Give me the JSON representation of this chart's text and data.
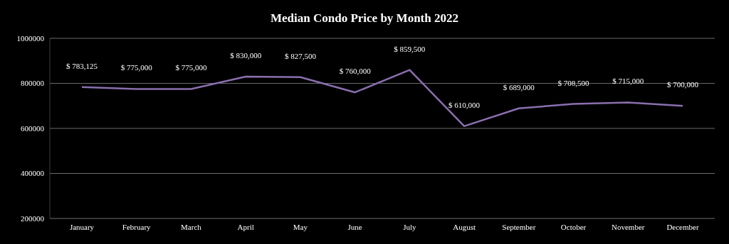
{
  "chart_data": {
    "type": "line",
    "title": "Median Condo Price by Month 2022",
    "categories": [
      "January",
      "February",
      "March",
      "April",
      "May",
      "June",
      "July",
      "August",
      "September",
      "October",
      "November",
      "December"
    ],
    "series": [
      {
        "color": "#8a6fae",
        "values": [
          783125,
          775000,
          775000,
          830000,
          827500,
          760000,
          859500,
          610000,
          689000,
          708500,
          715000,
          700000
        ],
        "value_labels": [
          "$ 783,125",
          "$ 775,000",
          "$ 775,000",
          "$ 830,000",
          "$ 827,500",
          "$ 760,000",
          "$ 859,500",
          "$ 610,000",
          "$ 689,000",
          "$ 708,500",
          "$ 715,000",
          "$ 700,000"
        ]
      }
    ],
    "ylim": [
      200000,
      1000000
    ],
    "yticks": [
      200000,
      400000,
      600000,
      800000,
      1000000
    ],
    "grid": "y",
    "legend": false,
    "marker": "none",
    "line_style": "solid"
  }
}
